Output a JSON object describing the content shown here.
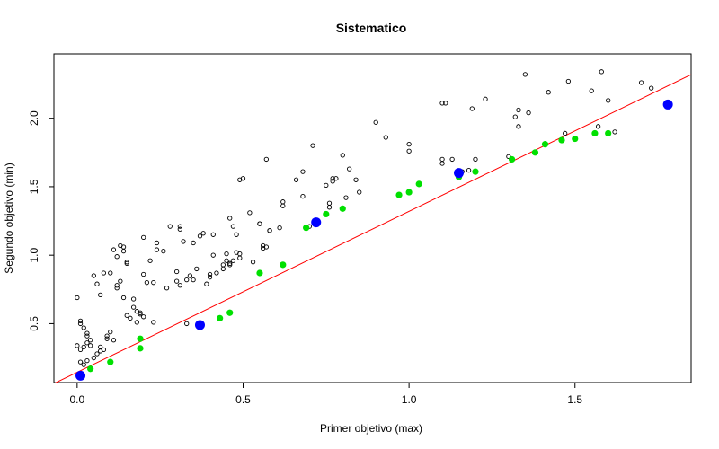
{
  "chart_data": {
    "type": "scatter",
    "title": "Sistematico",
    "xlabel": "Primer objetivo (max)",
    "ylabel": "Segundo objetivo (min)",
    "xlim": [
      -0.07,
      1.85
    ],
    "ylim": [
      0.07,
      2.47
    ],
    "x_ticks": [
      0.0,
      0.5,
      1.0,
      1.5
    ],
    "x_tick_labels": [
      "0.0",
      "0.5",
      "1.0",
      "1.5"
    ],
    "y_ticks": [
      0.5,
      1.0,
      1.5,
      2.0
    ],
    "y_tick_labels": [
      "0.5",
      "1.0",
      "1.5",
      "2.0"
    ],
    "grid": false,
    "legend": "none",
    "series": [
      {
        "marker": "open-circle",
        "color": "#000000",
        "points": [
          [
            0.0,
            0.69
          ],
          [
            0.01,
            0.5
          ],
          [
            0.01,
            0.52
          ],
          [
            0.02,
            0.47
          ],
          [
            0.03,
            0.43
          ],
          [
            0.04,
            0.38
          ],
          [
            0.0,
            0.34
          ],
          [
            0.01,
            0.31
          ],
          [
            0.02,
            0.33
          ],
          [
            0.03,
            0.36
          ],
          [
            0.04,
            0.34
          ],
          [
            0.01,
            0.22
          ],
          [
            0.02,
            0.2
          ],
          [
            0.03,
            0.23
          ],
          [
            0.05,
            0.25
          ],
          [
            0.06,
            0.28
          ],
          [
            0.07,
            0.3
          ],
          [
            0.08,
            0.31
          ],
          [
            0.07,
            0.33
          ],
          [
            0.03,
            0.41
          ],
          [
            0.05,
            0.85
          ],
          [
            0.06,
            0.79
          ],
          [
            0.07,
            0.71
          ],
          [
            0.08,
            0.87
          ],
          [
            0.09,
            0.41
          ],
          [
            0.1,
            0.44
          ],
          [
            0.09,
            0.39
          ],
          [
            0.11,
            0.38
          ],
          [
            0.1,
            0.87
          ],
          [
            0.11,
            1.04
          ],
          [
            0.12,
            0.99
          ],
          [
            0.12,
            0.76
          ],
          [
            0.12,
            0.78
          ],
          [
            0.13,
            0.81
          ],
          [
            0.13,
            1.07
          ],
          [
            0.14,
            1.06
          ],
          [
            0.14,
            1.03
          ],
          [
            0.15,
            0.94
          ],
          [
            0.15,
            0.95
          ],
          [
            0.14,
            0.69
          ],
          [
            0.15,
            0.56
          ],
          [
            0.16,
            0.54
          ],
          [
            0.17,
            0.62
          ],
          [
            0.17,
            0.68
          ],
          [
            0.18,
            0.51
          ],
          [
            0.18,
            0.59
          ],
          [
            0.19,
            0.58
          ],
          [
            0.19,
            0.57
          ],
          [
            0.2,
            0.55
          ],
          [
            0.21,
            0.8
          ],
          [
            0.2,
            0.86
          ],
          [
            0.2,
            1.13
          ],
          [
            0.22,
            0.96
          ],
          [
            0.23,
            0.8
          ],
          [
            0.23,
            0.51
          ],
          [
            0.24,
            1.04
          ],
          [
            0.24,
            1.09
          ],
          [
            0.26,
            1.03
          ],
          [
            0.27,
            0.76
          ],
          [
            0.28,
            1.21
          ],
          [
            0.3,
            0.81
          ],
          [
            0.3,
            0.88
          ],
          [
            0.31,
            0.78
          ],
          [
            0.31,
            1.19
          ],
          [
            0.31,
            1.21
          ],
          [
            0.32,
            1.1
          ],
          [
            0.33,
            0.82
          ],
          [
            0.33,
            0.5
          ],
          [
            0.34,
            0.85
          ],
          [
            0.35,
            0.82
          ],
          [
            0.35,
            1.09
          ],
          [
            0.36,
            0.9
          ],
          [
            0.37,
            1.14
          ],
          [
            0.38,
            1.16
          ],
          [
            0.39,
            0.79
          ],
          [
            0.4,
            0.84
          ],
          [
            0.4,
            0.86
          ],
          [
            0.41,
            1.0
          ],
          [
            0.41,
            1.15
          ],
          [
            0.42,
            0.87
          ],
          [
            0.44,
            0.9
          ],
          [
            0.44,
            0.93
          ],
          [
            0.45,
            0.96
          ],
          [
            0.45,
            1.01
          ],
          [
            0.46,
            0.93
          ],
          [
            0.46,
            1.27
          ],
          [
            0.46,
            0.94
          ],
          [
            0.47,
            1.21
          ],
          [
            0.47,
            0.96
          ],
          [
            0.48,
            1.02
          ],
          [
            0.48,
            1.15
          ],
          [
            0.49,
            1.01
          ],
          [
            0.49,
            0.98
          ],
          [
            0.49,
            1.55
          ],
          [
            0.5,
            1.56
          ],
          [
            0.52,
            1.31
          ],
          [
            0.53,
            0.95
          ],
          [
            0.55,
            1.23
          ],
          [
            0.55,
            1.23
          ],
          [
            0.56,
            1.07
          ],
          [
            0.56,
            1.05
          ],
          [
            0.57,
            1.06
          ],
          [
            0.58,
            1.18
          ],
          [
            0.58,
            1.18
          ],
          [
            0.57,
            1.7
          ],
          [
            0.61,
            1.2
          ],
          [
            0.62,
            1.39
          ],
          [
            0.62,
            1.36
          ],
          [
            0.66,
            1.55
          ],
          [
            0.68,
            1.61
          ],
          [
            0.68,
            1.43
          ],
          [
            0.7,
            1.21
          ],
          [
            0.71,
            1.8
          ],
          [
            0.72,
            1.24
          ],
          [
            0.75,
            1.51
          ],
          [
            0.76,
            1.38
          ],
          [
            0.76,
            1.35
          ],
          [
            0.77,
            1.54
          ],
          [
            0.77,
            1.56
          ],
          [
            0.78,
            1.56
          ],
          [
            0.8,
            1.73
          ],
          [
            0.81,
            1.42
          ],
          [
            0.82,
            1.63
          ],
          [
            0.84,
            1.55
          ],
          [
            0.85,
            1.46
          ],
          [
            0.9,
            1.97
          ],
          [
            0.93,
            1.86
          ],
          [
            1.0,
            1.76
          ],
          [
            1.0,
            1.81
          ],
          [
            1.1,
            1.67
          ],
          [
            1.1,
            1.7
          ],
          [
            1.1,
            2.11
          ],
          [
            1.11,
            2.11
          ],
          [
            1.13,
            1.7
          ],
          [
            1.16,
            1.61
          ],
          [
            1.18,
            1.62
          ],
          [
            1.19,
            2.07
          ],
          [
            1.2,
            1.7
          ],
          [
            1.23,
            2.14
          ],
          [
            1.3,
            1.72
          ],
          [
            1.32,
            2.01
          ],
          [
            1.33,
            2.06
          ],
          [
            1.33,
            1.94
          ],
          [
            1.35,
            2.32
          ],
          [
            1.36,
            2.04
          ],
          [
            1.42,
            2.19
          ],
          [
            1.47,
            1.89
          ],
          [
            1.48,
            2.27
          ],
          [
            1.55,
            2.2
          ],
          [
            1.57,
            1.94
          ],
          [
            1.58,
            2.34
          ],
          [
            1.6,
            2.13
          ],
          [
            1.62,
            1.9
          ],
          [
            1.7,
            2.26
          ],
          [
            1.73,
            2.22
          ]
        ]
      },
      {
        "marker": "filled-circle",
        "color": "#00e000",
        "points": [
          [
            0.04,
            0.17
          ],
          [
            0.1,
            0.22
          ],
          [
            0.19,
            0.32
          ],
          [
            0.19,
            0.39
          ],
          [
            0.43,
            0.54
          ],
          [
            0.46,
            0.58
          ],
          [
            0.55,
            0.87
          ],
          [
            0.62,
            0.93
          ],
          [
            0.69,
            1.2
          ],
          [
            0.75,
            1.3
          ],
          [
            0.8,
            1.34
          ],
          [
            0.97,
            1.44
          ],
          [
            1.0,
            1.46
          ],
          [
            1.03,
            1.52
          ],
          [
            1.15,
            1.57
          ],
          [
            1.2,
            1.61
          ],
          [
            1.31,
            1.7
          ],
          [
            1.38,
            1.75
          ],
          [
            1.41,
            1.81
          ],
          [
            1.46,
            1.84
          ],
          [
            1.5,
            1.85
          ],
          [
            1.56,
            1.89
          ],
          [
            1.6,
            1.89
          ]
        ]
      },
      {
        "marker": "filled-circle-large",
        "color": "#0000ff",
        "points": [
          [
            0.01,
            0.12
          ],
          [
            0.37,
            0.49
          ],
          [
            0.72,
            1.24
          ],
          [
            1.15,
            1.6
          ],
          [
            1.78,
            2.1
          ]
        ]
      }
    ],
    "reference_line": {
      "color": "#ff0000",
      "intercept": 0.145,
      "slope": 1.175
    }
  }
}
